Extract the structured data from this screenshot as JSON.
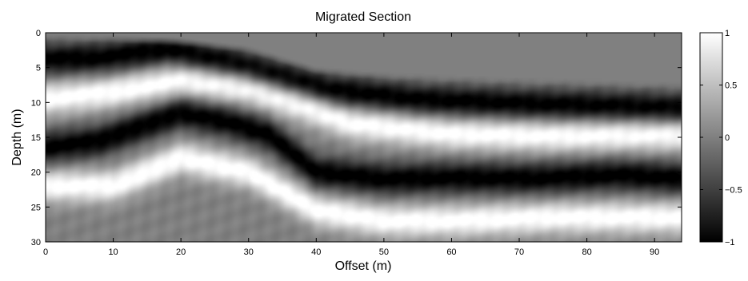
{
  "chart_data": {
    "type": "heatmap",
    "title": "Migrated Section",
    "xlabel": "Offset (m)",
    "ylabel": "Depth (m)",
    "xlim": [
      0,
      94
    ],
    "ylim": [
      0,
      30
    ],
    "y_reversed": true,
    "x_ticks": [
      0,
      10,
      20,
      30,
      40,
      50,
      60,
      70,
      80,
      90
    ],
    "y_ticks": [
      0,
      5,
      10,
      15,
      20,
      25,
      30
    ],
    "colormap": "gray",
    "colorbar": {
      "range": [
        -1,
        1
      ],
      "ticks": [
        -1,
        -0.5,
        0,
        0.5,
        1
      ],
      "tick_labels": [
        "−1",
        "−0.5",
        "0",
        "0.5",
        "1"
      ]
    },
    "colors": {
      "background_fill": "#808080",
      "max": "#ffffff",
      "min": "#000000"
    },
    "surface": {
      "x": [
        0,
        10,
        20,
        30,
        35,
        40,
        50,
        60,
        70,
        80,
        90,
        94
      ],
      "depth": [
        0,
        0.3,
        0.7,
        1.8,
        3.3,
        4.8,
        5.6,
        6.0,
        6.3,
        6.6,
        6.9,
        7.0
      ]
    },
    "reflectors": [
      {
        "polarity": -1,
        "x": [
          0,
          8,
          18,
          28,
          36,
          42,
          55,
          70,
          85,
          94
        ],
        "depth": [
          3.8,
          3.6,
          2.4,
          4.4,
          6.6,
          8.2,
          9.6,
          10.2,
          10.6,
          10.9
        ]
      },
      {
        "polarity": 1,
        "x": [
          0,
          10,
          20,
          30,
          38,
          45,
          60,
          75,
          94
        ],
        "depth": [
          9.5,
          8.5,
          6.8,
          8.0,
          10.5,
          13.0,
          14.5,
          14.8,
          14.6
        ]
      },
      {
        "polarity": -1,
        "x": [
          0,
          8,
          14,
          20,
          27,
          33,
          40,
          50,
          60,
          72,
          85,
          94
        ],
        "depth": [
          16.5,
          15.5,
          13.5,
          11.5,
          12.8,
          14.6,
          20.0,
          21.0,
          20.8,
          20.9,
          20.4,
          20.9
        ]
      },
      {
        "polarity": 1,
        "x": [
          0,
          10,
          20,
          30,
          40,
          50,
          60,
          75,
          94
        ],
        "depth": [
          22.0,
          22.0,
          18.0,
          20.0,
          25.5,
          27.0,
          27.0,
          26.5,
          26.5
        ]
      }
    ]
  }
}
